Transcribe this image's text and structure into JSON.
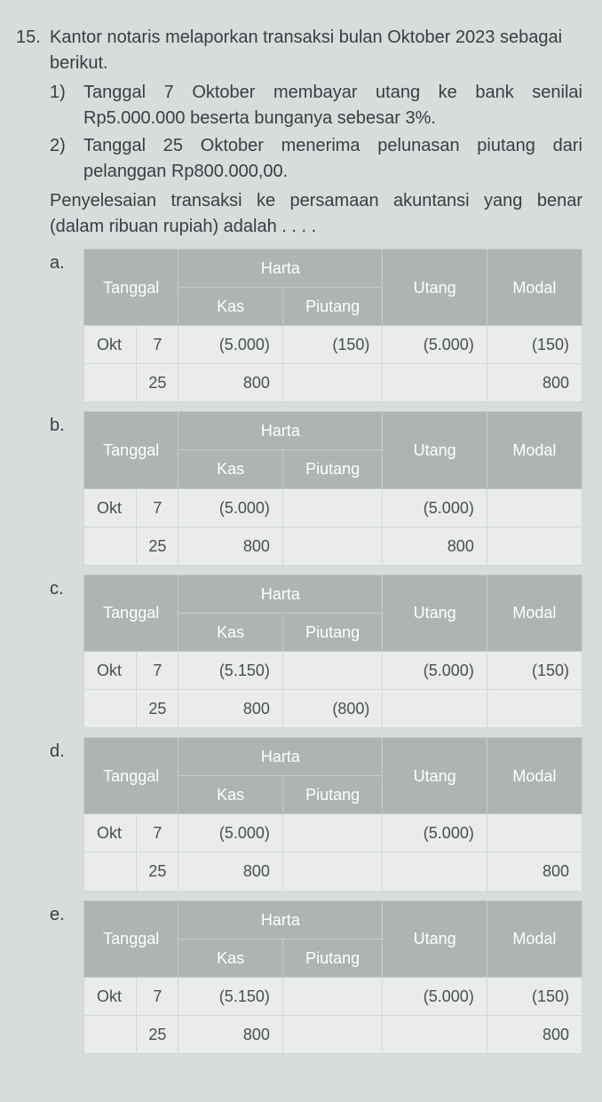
{
  "question": {
    "number": "15.",
    "intro": "Kantor notaris melaporkan transaksi bulan Oktober 2023 sebagai berikut.",
    "items": [
      {
        "num": "1)",
        "text": "Tanggal 7 Oktober membayar utang ke bank senilai Rp5.000.000 beserta bunganya sebesar 3%."
      },
      {
        "num": "2)",
        "text": "Tanggal 25 Oktober menerima pelunasan piutang dari pelanggan Rp800.000,00."
      }
    ],
    "closing": "Penyelesaian transaksi ke persamaan akuntansi yang benar (dalam ribuan rupiah) adalah . . . ."
  },
  "headers": {
    "tanggal": "Tanggal",
    "harta": "Harta",
    "kas": "Kas",
    "piutang": "Piutang",
    "utang": "Utang",
    "modal": "Modal"
  },
  "options": [
    {
      "label": "a.",
      "rows": [
        {
          "month": "Okt",
          "day": "7",
          "kas": "(5.000)",
          "piutang": "(150)",
          "utang": "(5.000)",
          "modal": "(150)"
        },
        {
          "month": "",
          "day": "25",
          "kas": "800",
          "piutang": "",
          "utang": "",
          "modal": "800"
        }
      ]
    },
    {
      "label": "b.",
      "rows": [
        {
          "month": "Okt",
          "day": "7",
          "kas": "(5.000)",
          "piutang": "",
          "utang": "(5.000)",
          "modal": ""
        },
        {
          "month": "",
          "day": "25",
          "kas": "800",
          "piutang": "",
          "utang": "800",
          "modal": ""
        }
      ]
    },
    {
      "label": "c.",
      "rows": [
        {
          "month": "Okt",
          "day": "7",
          "kas": "(5.150)",
          "piutang": "",
          "utang": "(5.000)",
          "modal": "(150)"
        },
        {
          "month": "",
          "day": "25",
          "kas": "800",
          "piutang": "(800)",
          "utang": "",
          "modal": ""
        }
      ]
    },
    {
      "label": "d.",
      "rows": [
        {
          "month": "Okt",
          "day": "7",
          "kas": "(5.000)",
          "piutang": "",
          "utang": "(5.000)",
          "modal": ""
        },
        {
          "month": "",
          "day": "25",
          "kas": "800",
          "piutang": "",
          "utang": "",
          "modal": "800"
        }
      ]
    },
    {
      "label": "e.",
      "rows": [
        {
          "month": "Okt",
          "day": "7",
          "kas": "(5.150)",
          "piutang": "",
          "utang": "(5.000)",
          "modal": "(150)"
        },
        {
          "month": "",
          "day": "25",
          "kas": "800",
          "piutang": "",
          "utang": "",
          "modal": "800"
        }
      ]
    }
  ]
}
